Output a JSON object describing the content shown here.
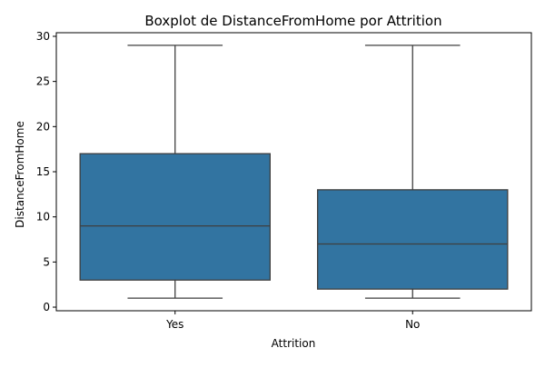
{
  "chart_data": {
    "type": "boxplot",
    "title": "Boxplot de DistanceFromHome por Attrition",
    "xlabel": "Attrition",
    "ylabel": "DistanceFromHome",
    "categories": [
      "Yes",
      "No"
    ],
    "boxes": [
      {
        "category": "Yes",
        "whisker_low": 1,
        "q1": 3,
        "median": 9,
        "q3": 17,
        "whisker_high": 29
      },
      {
        "category": "No",
        "whisker_low": 1,
        "q1": 2,
        "median": 7,
        "q3": 13,
        "whisker_high": 29
      }
    ],
    "ylim": [
      -0.4,
      30.4
    ],
    "yticks": [
      "0",
      "5",
      "10",
      "15",
      "20",
      "25",
      "30"
    ],
    "grid": false,
    "legend": "none",
    "colors": {
      "box_fill": "#3274a1",
      "line": "#3f3f3f",
      "axis": "#000000"
    }
  }
}
